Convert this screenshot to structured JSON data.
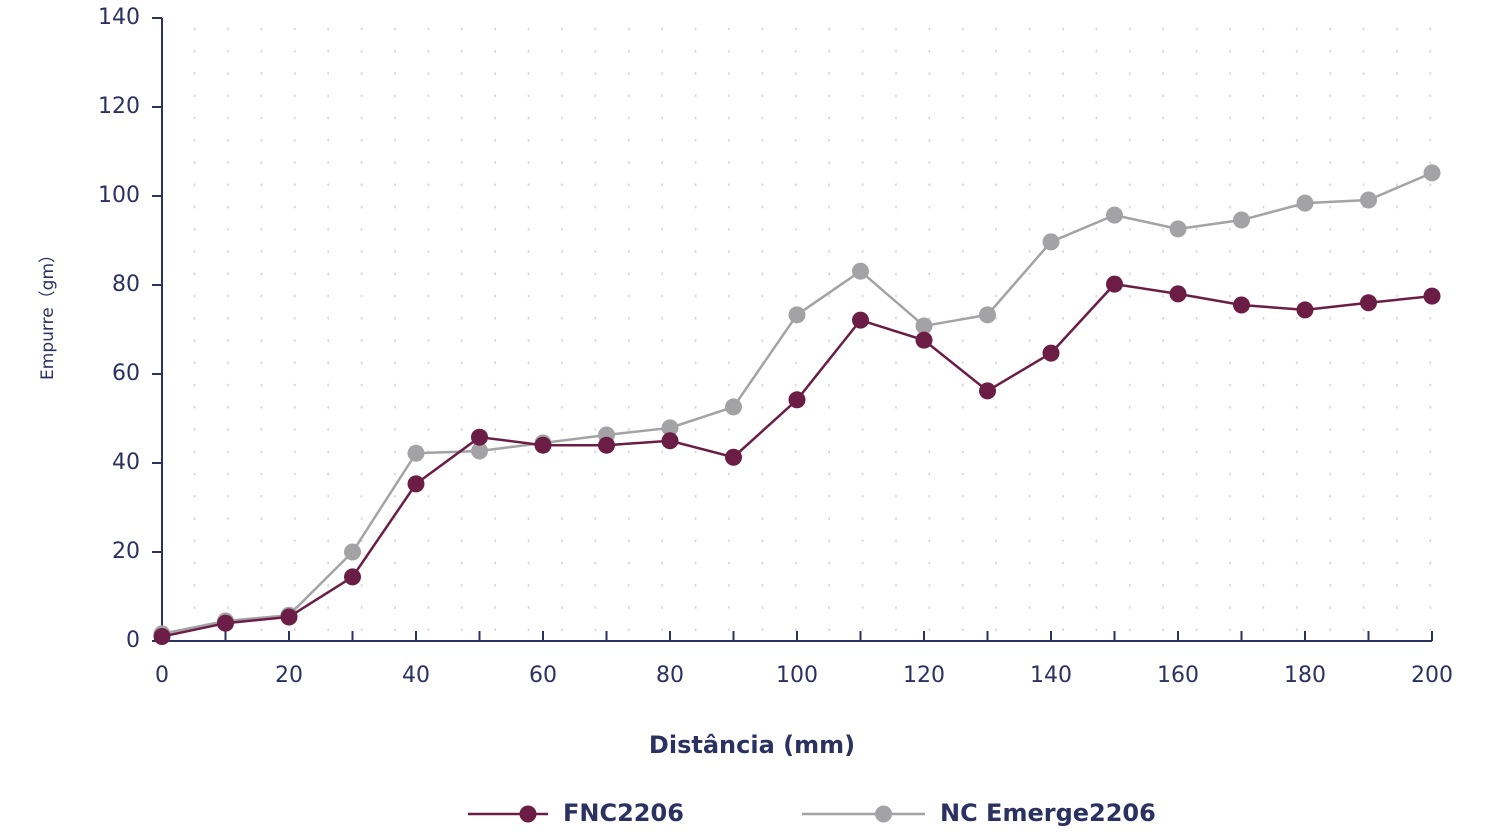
{
  "chart_data": {
    "type": "line",
    "xlabel": "Distância (mm)",
    "ylabel": "Empurre（gm）",
    "x": [
      0,
      10,
      20,
      30,
      40,
      50,
      60,
      70,
      80,
      90,
      100,
      110,
      120,
      130,
      140,
      150,
      160,
      170,
      180,
      190,
      200
    ],
    "series": [
      {
        "name": "FNC2206",
        "color": "#6b1d45",
        "values": [
          1,
          4,
          5.4,
          14.4,
          35.3,
          45.8,
          44,
          44,
          45,
          41.3,
          54.2,
          72.1,
          67.6,
          56.2,
          64.7,
          80.2,
          78,
          75.5,
          74.4,
          76,
          77.5
        ]
      },
      {
        "name": "NC Emerge2206",
        "color": "#a3a3a5",
        "values": [
          1.6,
          4.5,
          5.8,
          20,
          42.2,
          42.7,
          44.5,
          46.3,
          47.9,
          52.6,
          73.3,
          83.1,
          70.8,
          73.3,
          89.7,
          95.7,
          92.6,
          94.6,
          98.4,
          99.1,
          105.2
        ]
      }
    ],
    "xlim": [
      0,
      200
    ],
    "xticks": [
      0,
      20,
      40,
      60,
      80,
      100,
      120,
      140,
      160,
      180,
      200
    ],
    "xminorticks": [
      10,
      30,
      50,
      70,
      90,
      110,
      130,
      150,
      170,
      190
    ],
    "ylim": [
      0,
      140
    ],
    "yticks": [
      0,
      20,
      40,
      60,
      80,
      100,
      120,
      140
    ],
    "grid": "dots",
    "legend": "bottom"
  }
}
